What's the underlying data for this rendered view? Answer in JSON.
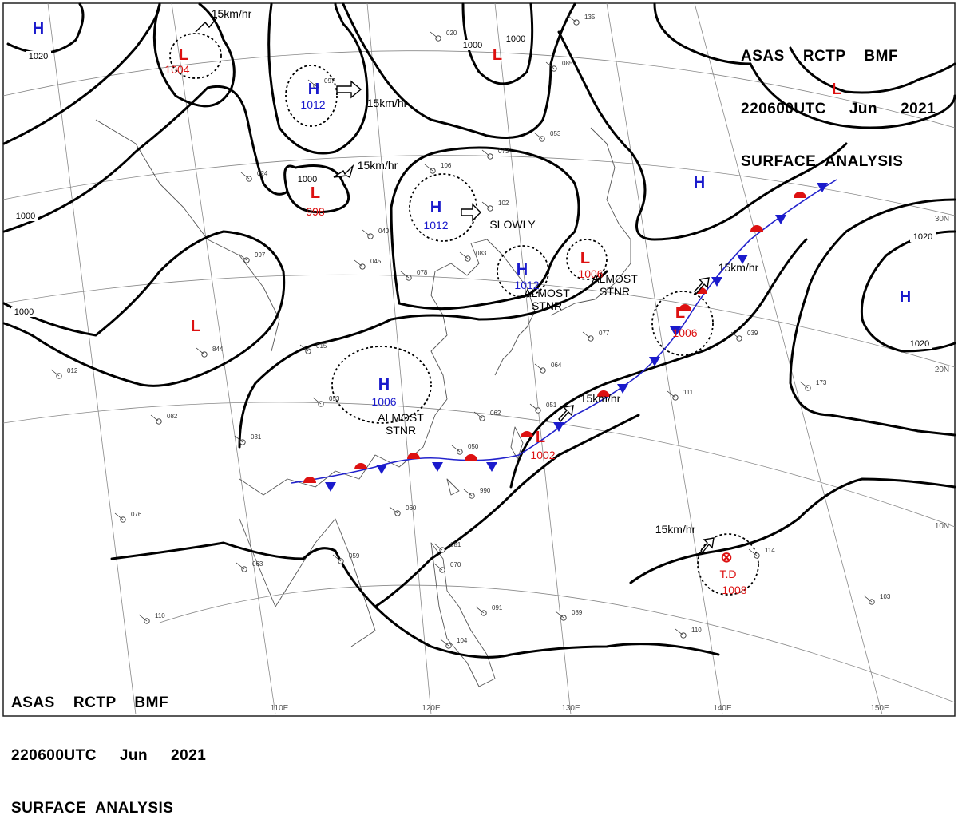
{
  "header": {
    "line1": "ASAS    RCTP    BMF",
    "line2": "220600UTC     Jun     2021",
    "line3": "SURFACE  ANALYSIS"
  },
  "longitudes": [
    "110E",
    "120E",
    "130E",
    "140E",
    "150E"
  ],
  "latitudes": [
    "30N",
    "20N",
    "10N"
  ],
  "isobar_labels": [
    "1020",
    "1000",
    "1000",
    "1000",
    "1000",
    "1000",
    "1020",
    "1020"
  ],
  "pressure_centers": [
    {
      "type": "H",
      "value": ""
    },
    {
      "type": "L",
      "value": "1004"
    },
    {
      "type": "H",
      "value": "1012"
    },
    {
      "type": "L",
      "value": "998"
    },
    {
      "type": "H",
      "value": "1012"
    },
    {
      "type": "L",
      "value": ""
    },
    {
      "type": "H",
      "value": "1012"
    },
    {
      "type": "L",
      "value": "1006"
    },
    {
      "type": "L",
      "value": "1006"
    },
    {
      "type": "H",
      "value": ""
    },
    {
      "type": "L",
      "value": ""
    },
    {
      "type": "H",
      "value": "1006"
    },
    {
      "type": "L",
      "value": "1002"
    },
    {
      "type": "H",
      "value": ""
    },
    {
      "type": "L",
      "value": ""
    }
  ],
  "typhoon": {
    "symbol": "⊗",
    "label": "T.D",
    "value": "1008"
  },
  "motion_labels": [
    "15km/hr",
    "15km/hr",
    "15km/hr",
    "SLOWLY",
    "ALMOST\nSTNR",
    "ALMOST\nSTNR",
    "ALMOST\nSTNR",
    "15km/hr",
    "15km/hr",
    "15km/hr"
  ],
  "colors": {
    "high": "#1a1acc",
    "low": "#dd1111",
    "front_warm": "#dd1111",
    "front_cold": "#1a1acc",
    "isobar": "#000000"
  },
  "station_values": [
    "020",
    "073",
    "106",
    "102",
    "083",
    "078",
    "045",
    "040",
    "997",
    "024",
    "844",
    "012",
    "015",
    "053",
    "031",
    "082",
    "062",
    "059",
    "076",
    "063",
    "110",
    "039",
    "050",
    "060",
    "990",
    "081",
    "070",
    "104",
    "089",
    "091",
    "110",
    "103",
    "173",
    "111",
    "114",
    "051",
    "053",
    "077",
    "064",
    "097",
    "135",
    "085"
  ]
}
